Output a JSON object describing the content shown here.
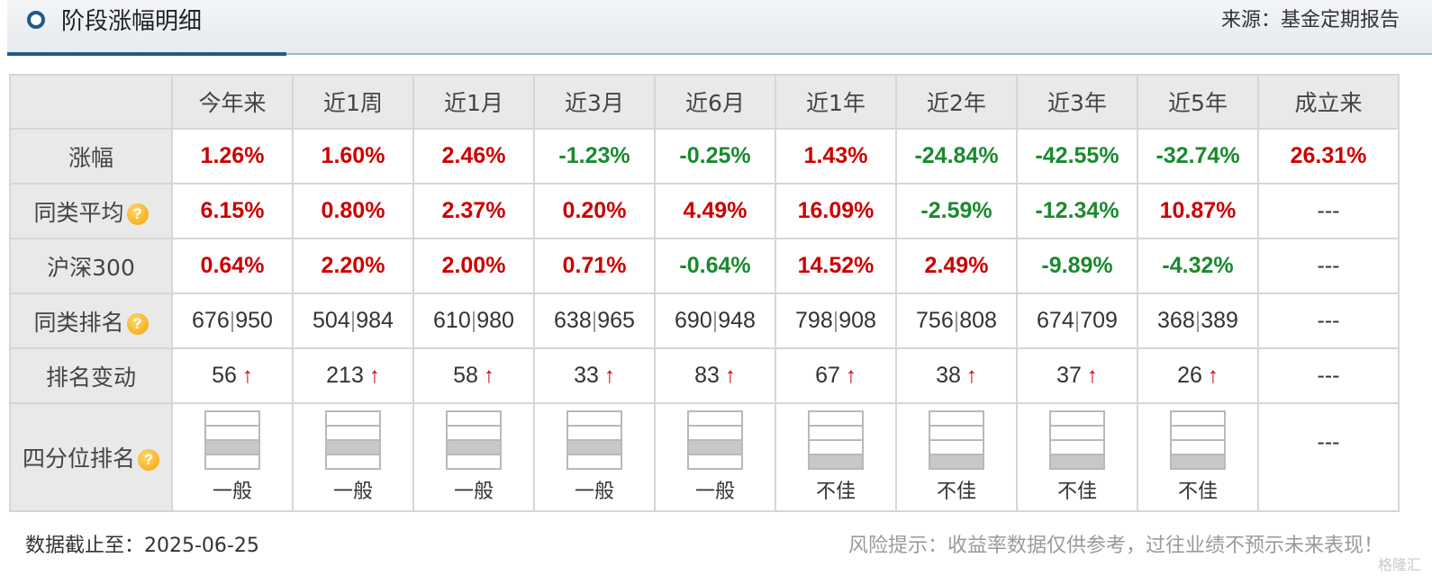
{
  "header": {
    "title": "阶段涨幅明细",
    "source": "来源：基金定期报告"
  },
  "columns": [
    "今年来",
    "近1周",
    "近1月",
    "近3月",
    "近6月",
    "近1年",
    "近2年",
    "近3年",
    "近5年",
    "成立来"
  ],
  "rows": {
    "gain": {
      "label": "涨幅",
      "values": [
        "1.26%",
        "1.60%",
        "2.46%",
        "-1.23%",
        "-0.25%",
        "1.43%",
        "-24.84%",
        "-42.55%",
        "-32.74%",
        "26.31%"
      ]
    },
    "peer_avg": {
      "label": "同类平均",
      "values": [
        "6.15%",
        "0.80%",
        "2.37%",
        "0.20%",
        "4.49%",
        "16.09%",
        "-2.59%",
        "-12.34%",
        "10.87%",
        "---"
      ]
    },
    "csi300": {
      "label": "沪深300",
      "values": [
        "0.64%",
        "2.20%",
        "2.00%",
        "0.71%",
        "-0.64%",
        "14.52%",
        "2.49%",
        "-9.89%",
        "-4.32%",
        "---"
      ]
    },
    "peer_rank": {
      "label": "同类排名",
      "separator": "|",
      "values": [
        [
          "676",
          "950"
        ],
        [
          "504",
          "984"
        ],
        [
          "610",
          "980"
        ],
        [
          "638",
          "965"
        ],
        [
          "690",
          "948"
        ],
        [
          "798",
          "908"
        ],
        [
          "756",
          "808"
        ],
        [
          "674",
          "709"
        ],
        [
          "368",
          "389"
        ]
      ],
      "last": "---"
    },
    "rank_change": {
      "label": "排名变动",
      "arrow": "↑",
      "values": [
        "56",
        "213",
        "58",
        "33",
        "83",
        "67",
        "38",
        "37",
        "26"
      ],
      "last": "---"
    },
    "quartile": {
      "label": "四分位排名",
      "filled_quartile": [
        3,
        3,
        3,
        3,
        3,
        4,
        4,
        4,
        4
      ],
      "labels": [
        "一般",
        "一般",
        "一般",
        "一般",
        "一般",
        "不佳",
        "不佳",
        "不佳",
        "不佳"
      ],
      "last": "---"
    }
  },
  "help_icon_glyph": "?",
  "colors": {
    "positive": "#cc0000",
    "negative": "#1a8a2e",
    "accent": "#1f5b87",
    "quartile_fill": "#c8c8c8"
  },
  "footer": {
    "date_text": "数据截止至：2025-06-25",
    "risk_text": "风险提示：收益率数据仅供参考，过往业绩不预示未来表现！",
    "watermark": "格隆汇"
  }
}
